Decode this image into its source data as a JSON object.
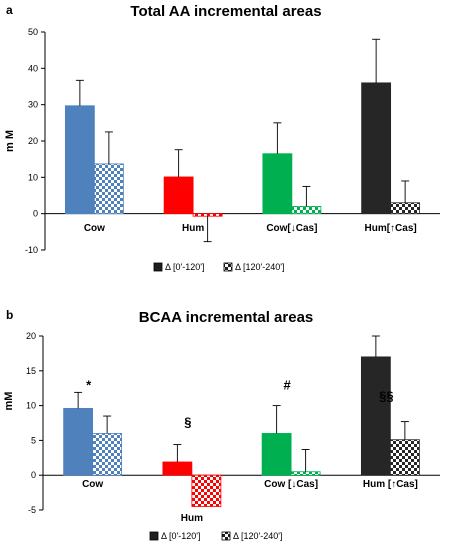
{
  "chart_data": [
    {
      "panel_label": "a",
      "type": "bar",
      "title": "Total AA incremental areas",
      "ylabel": "m M",
      "xlabel": "",
      "ylim": [
        -10,
        50
      ],
      "yticks": [
        "-10",
        "0",
        "10",
        "20",
        "30",
        "40",
        "50"
      ],
      "categories": [
        "Cow",
        "Hum",
        "Cow[↓Cas]",
        "Hum[↑Cas]"
      ],
      "category_colors": [
        "#4f81bd",
        "#ff0000",
        "#00b050",
        "#262626"
      ],
      "series": [
        {
          "name": "Δ [0'-120']",
          "fill": "solid",
          "values": [
            29.7,
            10.1,
            16.5,
            36.0
          ],
          "errors": [
            7.0,
            7.5,
            8.5,
            12.0
          ]
        },
        {
          "name": "Δ [120'-240']",
          "fill": "checker",
          "values": [
            13.7,
            -0.7,
            2.0,
            3.0
          ],
          "errors": [
            8.8,
            7.0,
            5.5,
            6.0
          ]
        }
      ],
      "annotations": [],
      "legend_position": "bottom",
      "grid": false
    },
    {
      "panel_label": "b",
      "type": "bar",
      "title": "BCAA incremental areas",
      "ylabel": "mM",
      "xlabel": "",
      "ylim": [
        -5,
        20
      ],
      "yticks": [
        "-5",
        "0",
        "5",
        "10",
        "15",
        "20"
      ],
      "categories": [
        "Cow",
        "Hum",
        "Cow [↓Cas]",
        "Hum [↑Cas]"
      ],
      "category_colors": [
        "#4f81bd",
        "#ff0000",
        "#00b050",
        "#262626"
      ],
      "series": [
        {
          "name": "Δ [0'-120']",
          "fill": "solid",
          "values": [
            9.6,
            1.9,
            6.0,
            17.0
          ],
          "errors": [
            2.3,
            2.5,
            4.0,
            3.0
          ]
        },
        {
          "name": "Δ [120'-240']",
          "fill": "checker",
          "values": [
            6.0,
            -4.5,
            0.5,
            5.1
          ],
          "errors": [
            2.5,
            0,
            3.2,
            2.6
          ]
        }
      ],
      "annotations": [
        {
          "text": "*",
          "category": 0,
          "value": 12.3
        },
        {
          "text": "§",
          "category": 1,
          "value": 7.0
        },
        {
          "text": "#",
          "category": 2,
          "value": 12.3
        },
        {
          "text": "§§",
          "category": 3,
          "value": 10.7
        }
      ],
      "legend_position": "bottom",
      "grid": false
    }
  ]
}
